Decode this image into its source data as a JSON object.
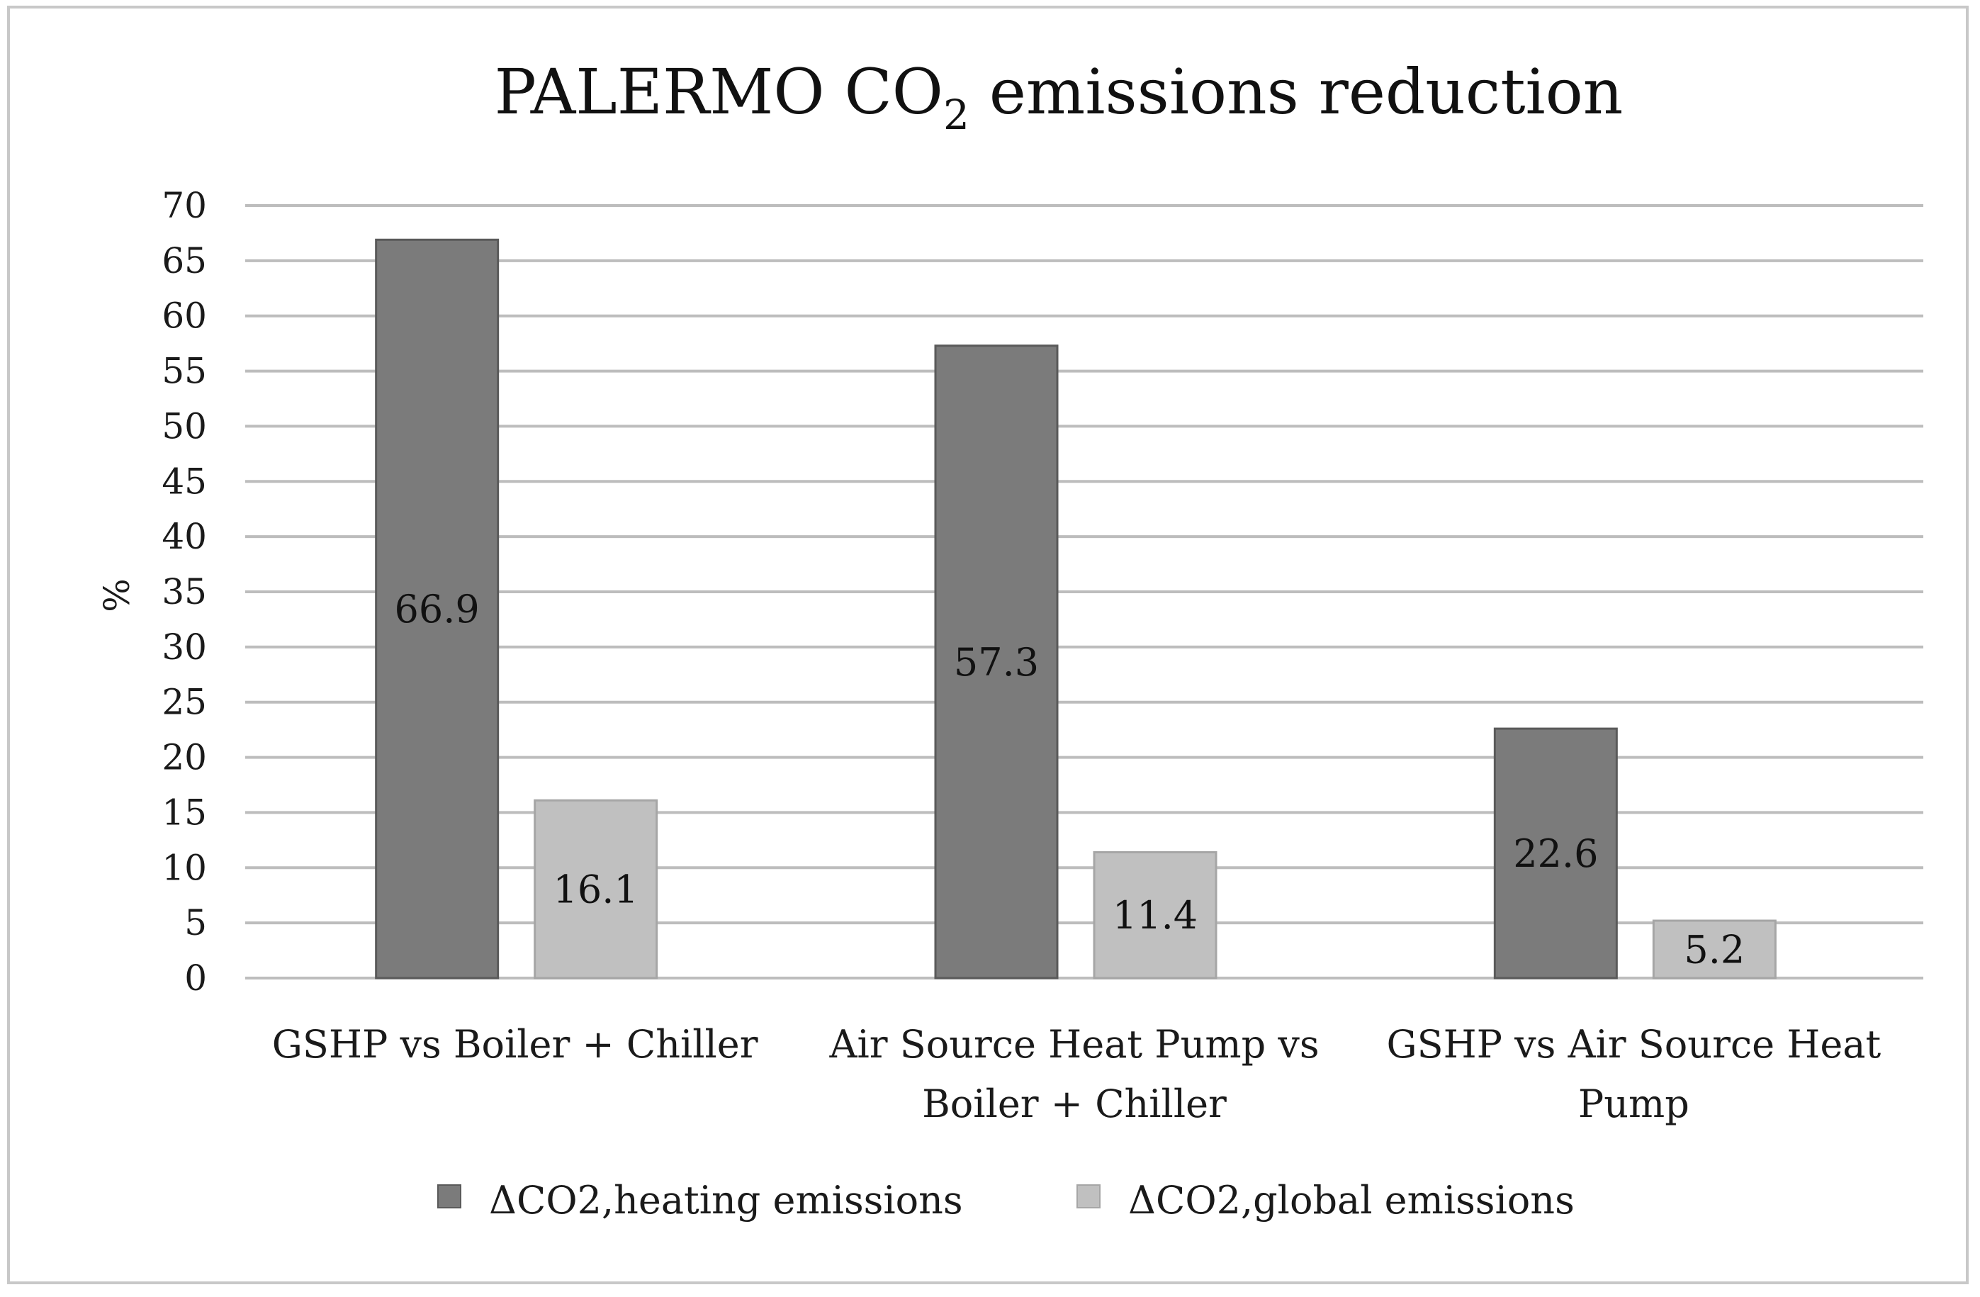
{
  "chart_data": {
    "type": "bar",
    "title_prefix": "PALERMO  CO",
    "title_subscript": "2",
    "title_suffix": " emissions reduction",
    "ylabel": "%",
    "xlabel": "",
    "ylim": [
      0,
      70
    ],
    "ytick_step": 5,
    "grid": true,
    "legend_position": "bottom",
    "categories": [
      [
        "GSHP vs Boiler + Chiller"
      ],
      [
        "Air Source Heat Pump vs",
        "Boiler + Chiller"
      ],
      [
        "GSHP vs Air Source Heat",
        "Pump"
      ]
    ],
    "series": [
      {
        "name": "ΔCO2,heating emissions",
        "color": "#7b7b7b",
        "values": [
          66.9,
          57.3,
          22.6
        ],
        "labels": [
          "66.9",
          "57.3",
          "22.6"
        ]
      },
      {
        "name": "ΔCO2,global emissions",
        "color": "#c0c0c0",
        "values": [
          16.1,
          11.4,
          5.2
        ],
        "labels": [
          "16.1",
          "11.4",
          "5.2"
        ]
      }
    ]
  }
}
